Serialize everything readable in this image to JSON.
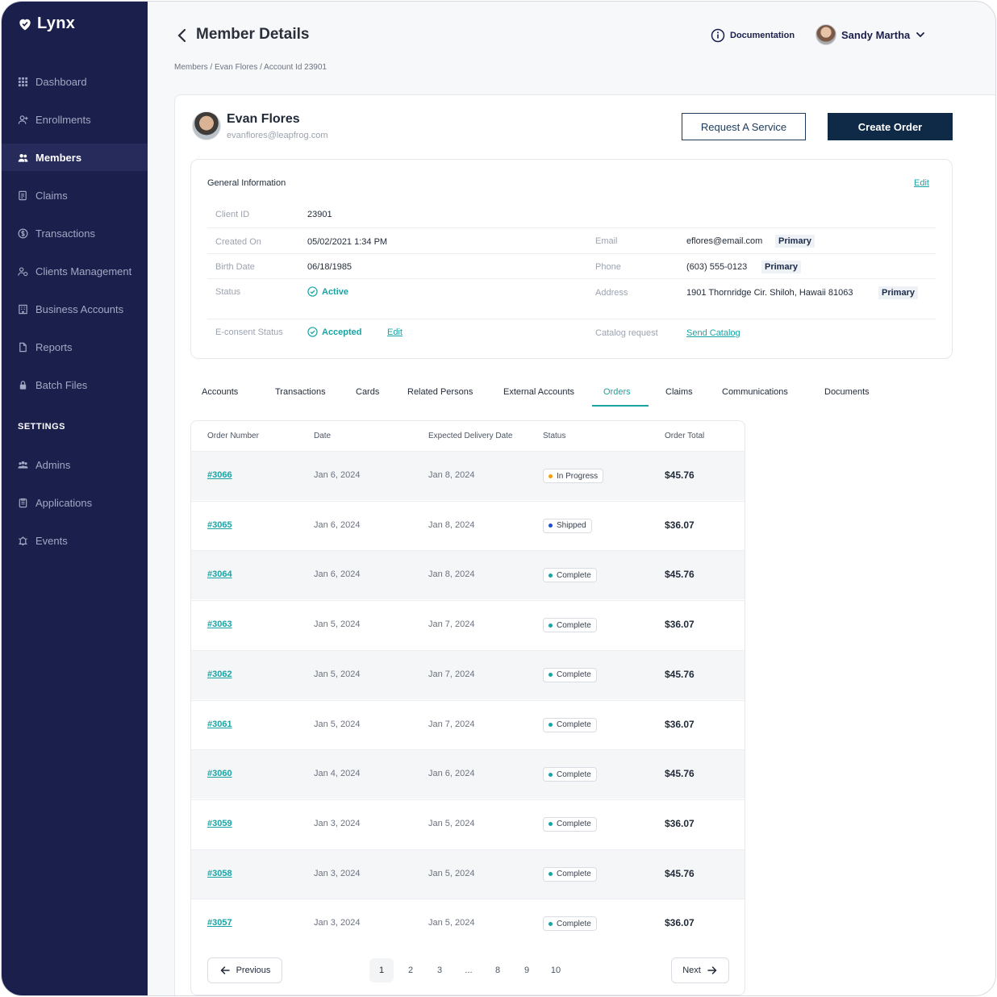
{
  "app": {
    "name": "Lynx",
    "accent": "#1aa3a3",
    "sidebar_bg": "#1b1f4b"
  },
  "sidebar": {
    "items": [
      {
        "label": "Dashboard",
        "icon": "grid-icon"
      },
      {
        "label": "Enrollments",
        "icon": "user-plus-icon"
      },
      {
        "label": "Members",
        "icon": "users-icon",
        "active": true
      },
      {
        "label": "Claims",
        "icon": "document-icon"
      },
      {
        "label": "Transactions",
        "icon": "dollar-circle-icon"
      },
      {
        "label": "Clients Management",
        "icon": "people-gear-icon"
      },
      {
        "label": "Business Accounts",
        "icon": "building-icon"
      },
      {
        "label": "Reports",
        "icon": "file-icon"
      },
      {
        "label": "Batch Files",
        "icon": "lock-icon"
      }
    ],
    "settings_heading": "SETTINGS",
    "settings_items": [
      {
        "label": "Admins",
        "icon": "group-icon"
      },
      {
        "label": "Applications",
        "icon": "clipboard-icon"
      },
      {
        "label": "Events",
        "icon": "bell-icon"
      }
    ]
  },
  "header": {
    "title": "Member Details",
    "breadcrumb": "Members / Evan Flores / Account Id 23901",
    "documentation": "Documentation",
    "user_name": "Sandy Martha"
  },
  "member": {
    "name": "Evan Flores",
    "email": "evanflores@leapfrog.com",
    "request_service": "Request A Service",
    "create_order": "Create Order"
  },
  "general_info": {
    "title": "General Information",
    "edit": "Edit",
    "client_id_label": "Client ID",
    "client_id": "23901",
    "created_on_label": "Created On",
    "created_on": "05/02/2021 1:34 PM",
    "birth_date_label": "Birth Date",
    "birth_date": "06/18/1985",
    "status_label": "Status",
    "status": "Active",
    "econsent_label": "E-consent Status",
    "econsent": "Accepted",
    "econsent_edit": "Edit",
    "email_label": "Email",
    "email": "eflores@email.com",
    "phone_label": "Phone",
    "phone": "(603) 555-0123",
    "address_label": "Address",
    "address": "1901 Thornridge Cir. Shiloh, Hawaii 81063",
    "primary": "Primary",
    "catalog_label": "Catalog request",
    "catalog_link": "Send Catalog"
  },
  "tabs": [
    "Accounts",
    "Transactions",
    "Cards",
    "Related Persons",
    "External Accounts",
    "Orders",
    "Claims",
    "Communications",
    "Documents"
  ],
  "active_tab": "Orders",
  "orders": {
    "columns": [
      "Order Number",
      "Date",
      "Expected Delivery Date",
      "Status",
      "Order Total"
    ],
    "rows": [
      {
        "number": "#3066",
        "date": "Jan 6, 2024",
        "expected": "Jan 8, 2024",
        "status": "In Progress",
        "status_color": "#f59e0b",
        "total": "$45.76"
      },
      {
        "number": "#3065",
        "date": "Jan 6, 2024",
        "expected": "Jan 8, 2024",
        "status": "Shipped",
        "status_color": "#1d4ed8",
        "total": "$36.07"
      },
      {
        "number": "#3064",
        "date": "Jan 6, 2024",
        "expected": "Jan 8, 2024",
        "status": "Complete",
        "status_color": "#1aa3a3",
        "total": "$45.76"
      },
      {
        "number": "#3063",
        "date": "Jan 5, 2024",
        "expected": "Jan 7, 2024",
        "status": "Complete",
        "status_color": "#1aa3a3",
        "total": "$36.07"
      },
      {
        "number": "#3062",
        "date": "Jan 5, 2024",
        "expected": "Jan 7, 2024",
        "status": "Complete",
        "status_color": "#1aa3a3",
        "total": "$45.76"
      },
      {
        "number": "#3061",
        "date": "Jan 5, 2024",
        "expected": "Jan 7, 2024",
        "status": "Complete",
        "status_color": "#1aa3a3",
        "total": "$36.07"
      },
      {
        "number": "#3060",
        "date": "Jan 4, 2024",
        "expected": "Jan 6, 2024",
        "status": "Complete",
        "status_color": "#1aa3a3",
        "total": "$45.76"
      },
      {
        "number": "#3059",
        "date": "Jan 3, 2024",
        "expected": "Jan 5, 2024",
        "status": "Complete",
        "status_color": "#1aa3a3",
        "total": "$36.07"
      },
      {
        "number": "#3058",
        "date": "Jan 3, 2024",
        "expected": "Jan 5, 2024",
        "status": "Complete",
        "status_color": "#1aa3a3",
        "total": "$45.76"
      },
      {
        "number": "#3057",
        "date": "Jan 3, 2024",
        "expected": "Jan 5, 2024",
        "status": "Complete",
        "status_color": "#1aa3a3",
        "total": "$36.07"
      }
    ]
  },
  "pagination": {
    "previous": "Previous",
    "next": "Next",
    "pages": [
      "1",
      "2",
      "3",
      "...",
      "8",
      "9",
      "10"
    ],
    "current": "1"
  }
}
